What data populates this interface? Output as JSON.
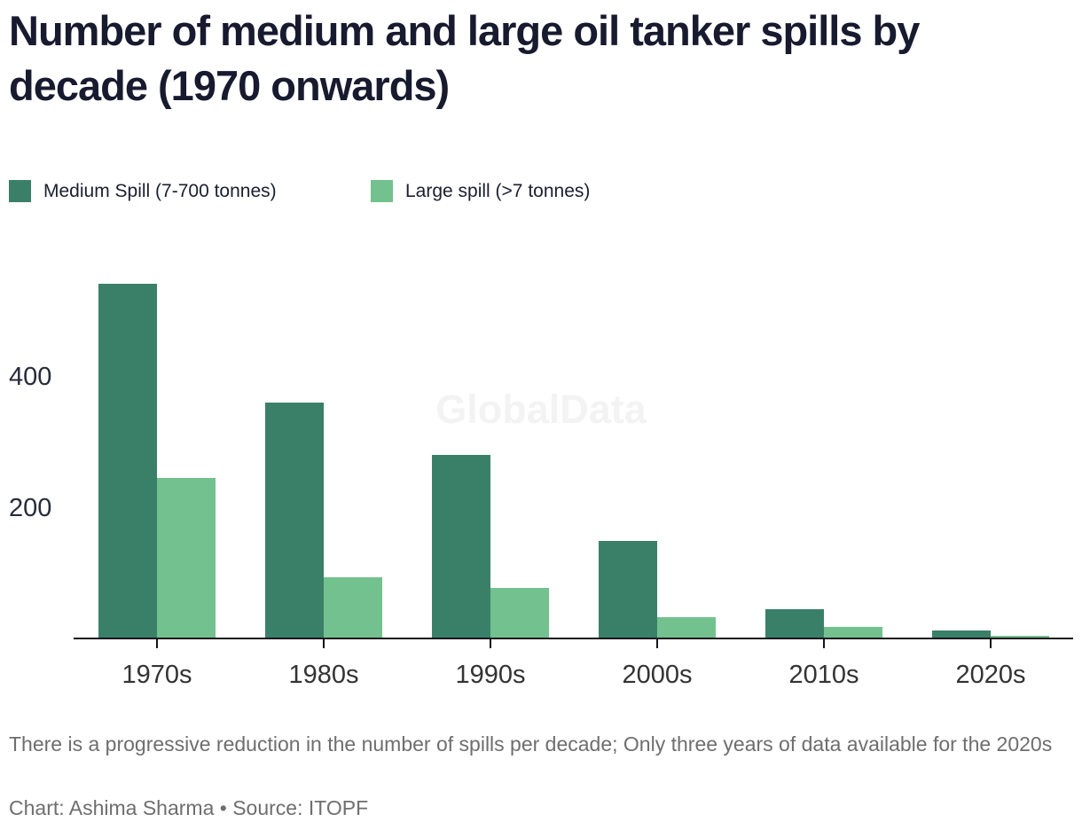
{
  "title": "Number of medium and large oil tanker spills by decade (1970 onwards)",
  "watermark": "GlobalData",
  "notes": "There is a progressive reduction in the number of spills per decade; Only three years of data available for the 2020s",
  "credit": "Chart: Ashima Sharma • Source: ITOPF",
  "colors": {
    "medium_green": "#3a8068",
    "large_green": "#73c18e",
    "title_text": "#181b2f",
    "axis_line": "#15161c",
    "footnote_gray": "#6e6e6e"
  },
  "chart_data": {
    "type": "bar",
    "title": "Number of medium and large oil tanker spills by decade (1970 onwards)",
    "categories": [
      "1970s",
      "1980s",
      "1990s",
      "2000s",
      "2010s",
      "2020s"
    ],
    "series": [
      {
        "name": "Medium Spill (7-700 tonnes)",
        "key": "medium",
        "color": "#3a8068",
        "values": [
          543,
          360,
          281,
          149,
          45,
          12
        ]
      },
      {
        "name": "Large spill (>7 tonnes)",
        "key": "large",
        "color": "#73c18e",
        "values": [
          245,
          94,
          77,
          32,
          18,
          4
        ]
      }
    ],
    "yticks": [
      200,
      400
    ],
    "ylim": [
      0,
      560
    ],
    "grid": false,
    "legend_position": "top-left",
    "xlabel": "",
    "ylabel": ""
  }
}
